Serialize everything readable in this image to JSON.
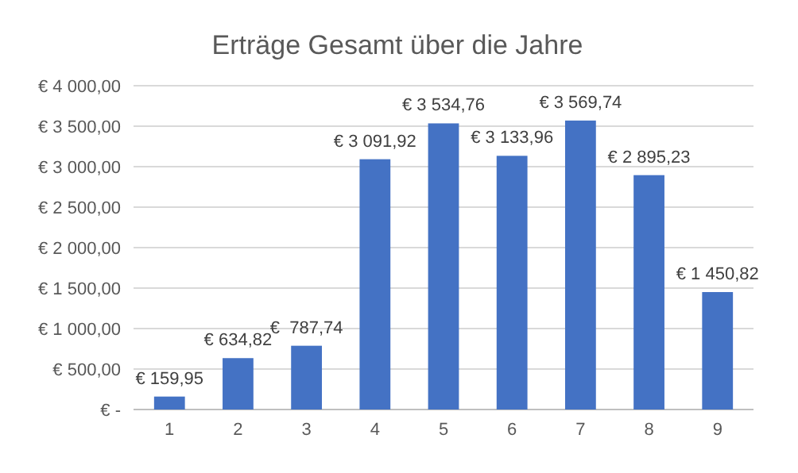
{
  "chart_data": {
    "type": "bar",
    "title": "Erträge Gesamt über die Jahre",
    "categories": [
      "1",
      "2",
      "3",
      "4",
      "5",
      "6",
      "7",
      "8",
      "9"
    ],
    "values": [
      159.95,
      634.82,
      787.74,
      3091.92,
      3534.76,
      3133.96,
      3569.74,
      2895.23,
      1450.82
    ],
    "value_labels": [
      "€ 159,95",
      "€ 634,82",
      "€  787,74",
      "€ 3 091,92",
      "€ 3 534,76",
      "€ 3 133,96",
      "€ 3 569,74",
      "€ 2 895,23",
      "€ 1 450,82"
    ],
    "color": "#4472c4",
    "ylim": [
      0,
      4000
    ],
    "yticks": [
      {
        "value": 0,
        "label": "€ -"
      },
      {
        "value": 500,
        "label": "€ 500,00"
      },
      {
        "value": 1000,
        "label": "€ 1 000,00"
      },
      {
        "value": 1500,
        "label": "€ 1 500,00"
      },
      {
        "value": 2000,
        "label": "€ 2 000,00"
      },
      {
        "value": 2500,
        "label": "€ 2 500,00"
      },
      {
        "value": 3000,
        "label": "€ 3 000,00"
      },
      {
        "value": 3500,
        "label": "€ 3 500,00"
      },
      {
        "value": 4000,
        "label": "€ 4 000,00"
      }
    ],
    "grid": "y"
  }
}
